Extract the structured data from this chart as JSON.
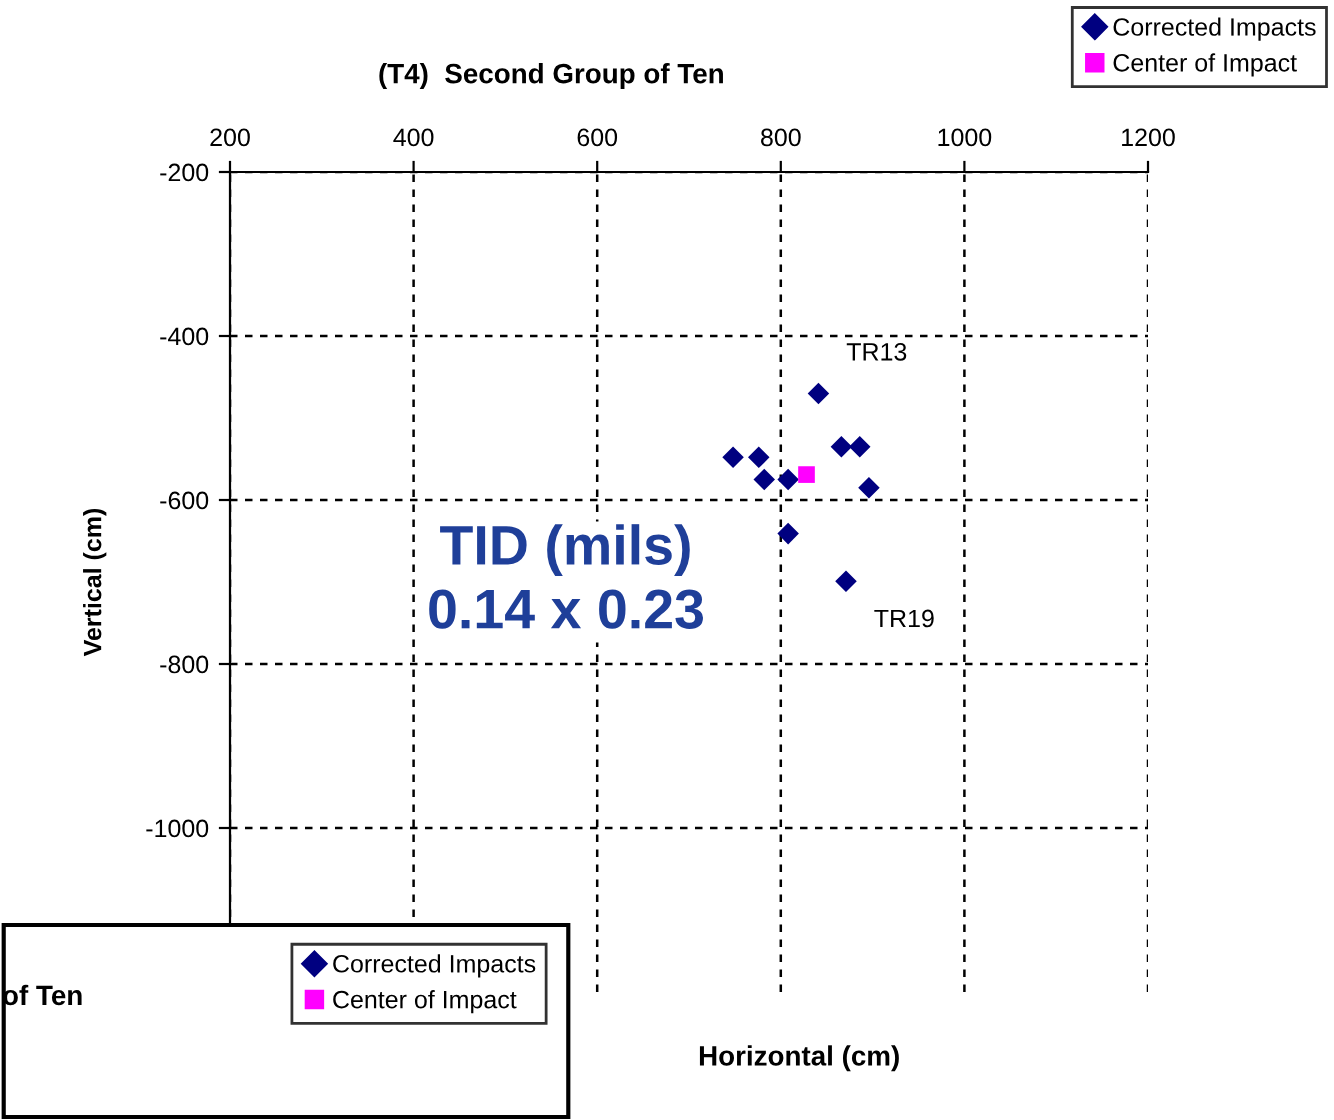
{
  "chart_data": [
    {
      "type": "scatter",
      "title": "(T4)  Second Group of Ten",
      "xlabel": "Horizontal (cm)",
      "ylabel": "Vertical (cm)",
      "series": [
        {
          "name": "Corrected Impacts",
          "color": "#000080",
          "marker": "diamond",
          "x": [
            841,
            748,
            776,
            782,
            808,
            866,
            886,
            896,
            808,
            871
          ],
          "values": [
            -470,
            -548,
            -548,
            -575,
            -575,
            -535,
            -535,
            -585,
            -641,
            -699
          ]
        },
        {
          "name": "Center of Impact",
          "color": "#ff00ff",
          "marker": "square",
          "x": [
            828
          ],
          "values": [
            -569
          ]
        }
      ],
      "xlim": [
        200,
        1200
      ],
      "xticks": [
        200,
        400,
        600,
        800,
        1000,
        1200
      ],
      "ylim": [
        -1200,
        -200
      ],
      "yticks": [
        -1000,
        -800,
        -600,
        -400,
        -200
      ],
      "grid": true,
      "legend": "top right",
      "annotations": [
        {
          "text": "TR13",
          "x": 841,
          "y": -470
        },
        {
          "text": "TR19",
          "x": 871,
          "y": -699
        },
        "TID (mils)\n0.14 x 0.23"
      ]
    },
    {
      "type": "other",
      "title": "of Ten",
      "legend": "top right",
      "series": [
        {
          "name": "Corrected Impacts",
          "color": "#000080",
          "marker": "diamond"
        },
        {
          "name": "Center of Impact",
          "color": "#ff00ff",
          "marker": "square"
        }
      ]
    }
  ]
}
